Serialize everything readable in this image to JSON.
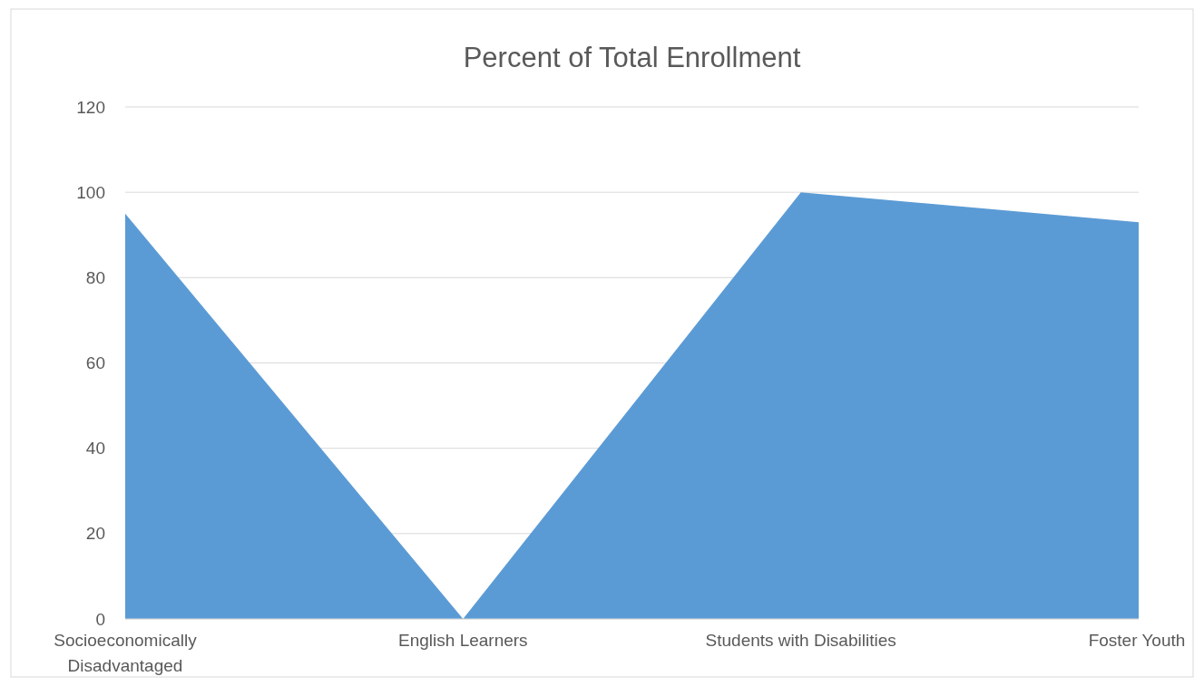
{
  "chart_data": {
    "type": "area",
    "title": "Percent of Total Enrollment",
    "categories": [
      "Socioeconomically Disadvantaged",
      "English Learners",
      "Students with Disabilities",
      "Foster Youth"
    ],
    "series": [
      {
        "color": "#5b9bd5",
        "values": [
          95,
          0,
          100,
          93
        ]
      }
    ],
    "ylim": [
      0,
      120
    ],
    "yticks": [
      0,
      20,
      40,
      60,
      80,
      100,
      120
    ],
    "grid": "y"
  }
}
